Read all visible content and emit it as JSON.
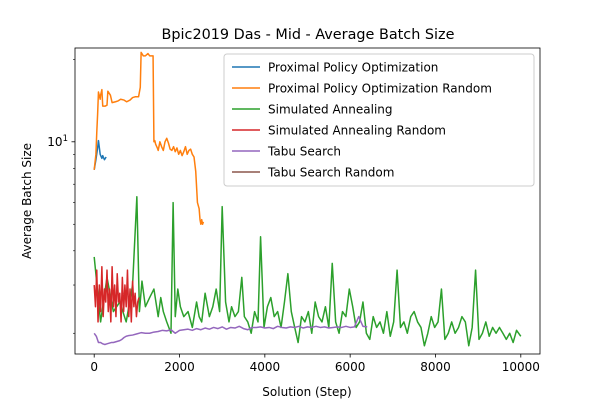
{
  "chart_data": {
    "type": "line",
    "title": "Bpic2019 Das - Mid - Average Batch Size",
    "xlabel": "Solution (Step)",
    "ylabel": "Average Batch Size",
    "xlim": [
      -450,
      10450
    ],
    "ylim": [
      1.68,
      22.0
    ],
    "yscale": "log",
    "grid": false,
    "legend_position": "top-right",
    "x_ticks": [
      0,
      2000,
      4000,
      6000,
      8000,
      10000
    ],
    "x_tick_labels": [
      "0",
      "2000",
      "4000",
      "6000",
      "8000",
      "10000"
    ],
    "y_major_ticks": [
      10
    ],
    "y_major_tick_labels": [
      "10^1"
    ],
    "y_minor_ticks": [
      2,
      3,
      4,
      5,
      6,
      7,
      8,
      9,
      20
    ],
    "series": [
      {
        "name": "Proximal Policy Optimization",
        "color": "#1f77b4",
        "x": [
          0,
          40,
          80,
          100,
          140,
          180,
          200,
          240,
          280
        ],
        "y": [
          7.9,
          8.6,
          9.5,
          10.1,
          9.0,
          8.7,
          8.9,
          8.6,
          8.8
        ]
      },
      {
        "name": "Proximal Policy Optimization Random",
        "color": "#ff7f0e",
        "x": [
          0,
          40,
          60,
          80,
          100,
          140,
          150,
          180,
          200,
          220,
          260,
          300,
          320,
          380,
          420,
          500,
          560,
          620,
          700,
          760,
          800,
          840,
          900,
          960,
          1000,
          1040,
          1080,
          1100,
          1150,
          1200,
          1260,
          1300,
          1340,
          1380,
          1400,
          1420,
          1440,
          1480,
          1500,
          1540,
          1580,
          1620,
          1660,
          1700,
          1740,
          1780,
          1820,
          1860,
          1900,
          1940,
          1980,
          2020,
          2060,
          2100,
          2140,
          2180,
          2220,
          2260,
          2300,
          2340,
          2380,
          2420,
          2460,
          2480,
          2500,
          2520,
          2540,
          2560
        ],
        "y": [
          7.9,
          9.0,
          10.8,
          12.6,
          15.2,
          14.3,
          14.8,
          15.5,
          13.5,
          13.5,
          13.5,
          13.6,
          15.3,
          14.8,
          13.9,
          14.0,
          14.1,
          14.3,
          14.2,
          14.0,
          14.1,
          14.2,
          14.5,
          14.6,
          14.6,
          14.6,
          15.8,
          21.2,
          20.6,
          20.6,
          21.0,
          20.6,
          20.6,
          20.6,
          10.0,
          10.1,
          9.8,
          9.5,
          9.3,
          10.0,
          9.6,
          9.3,
          10.0,
          10.3,
          9.9,
          9.4,
          9.3,
          9.6,
          9.2,
          9.5,
          9.0,
          9.3,
          8.9,
          9.2,
          9.6,
          9.0,
          9.3,
          9.4,
          9.0,
          8.8,
          7.8,
          6.0,
          5.7,
          5.2,
          5.0,
          5.2,
          5.0,
          5.1
        ]
      },
      {
        "name": "Simulated Annealing",
        "color": "#2ca02c",
        "x": [
          0,
          150,
          300,
          450,
          600,
          750,
          900,
          1000,
          1060,
          1120,
          1200,
          1300,
          1400,
          1500,
          1560,
          1620,
          1700,
          1800,
          1850,
          1900,
          1960,
          2020,
          2100,
          2200,
          2300,
          2400,
          2460,
          2520,
          2600,
          2700,
          2780,
          2860,
          2940,
          3000,
          3080,
          3160,
          3220,
          3300,
          3380,
          3460,
          3520,
          3600,
          3680,
          3760,
          3840,
          3900,
          3980,
          4060,
          4140,
          4220,
          4300,
          4380,
          4460,
          4540,
          4620,
          4700,
          4780,
          4860,
          4940,
          5020,
          5100,
          5180,
          5260,
          5340,
          5420,
          5500,
          5580,
          5660,
          5740,
          5820,
          5900,
          5980,
          6060,
          6140,
          6220,
          6300,
          6380,
          6460,
          6540,
          6620,
          6700,
          6780,
          6860,
          6940,
          7020,
          7100,
          7180,
          7260,
          7340,
          7420,
          7500,
          7580,
          7660,
          7740,
          7820,
          7900,
          7980,
          8060,
          8140,
          8220,
          8300,
          8380,
          8460,
          8540,
          8620,
          8700,
          8780,
          8860,
          8940,
          9020,
          9100,
          9180,
          9260,
          9340,
          9420,
          9500,
          9580,
          9660,
          9740,
          9820,
          9900,
          10000
        ],
        "y": [
          3.8,
          2.2,
          3.2,
          2.4,
          2.6,
          2.2,
          3.0,
          6.3,
          2.4,
          3.1,
          2.5,
          2.7,
          2.9,
          2.3,
          2.7,
          2.4,
          2.2,
          2.0,
          6.0,
          2.3,
          2.9,
          2.5,
          2.3,
          2.4,
          2.1,
          2.6,
          2.3,
          2.2,
          2.8,
          2.3,
          2.5,
          2.9,
          2.4,
          5.8,
          2.6,
          2.2,
          2.5,
          2.3,
          2.4,
          3.2,
          2.3,
          2.2,
          2.0,
          2.4,
          2.2,
          4.5,
          2.1,
          2.5,
          2.7,
          2.3,
          2.4,
          2.1,
          2.6,
          3.3,
          2.4,
          2.1,
          1.85,
          2.3,
          2.2,
          2.4,
          2.0,
          2.6,
          2.3,
          2.2,
          2.5,
          2.1,
          3.6,
          2.2,
          2.0,
          2.4,
          2.3,
          2.9,
          2.5,
          2.1,
          2.2,
          2.6,
          2.0,
          1.9,
          2.3,
          2.1,
          2.2,
          2.0,
          2.4,
          1.95,
          2.2,
          3.4,
          2.1,
          2.2,
          2.0,
          2.3,
          2.4,
          2.2,
          2.1,
          1.8,
          2.0,
          2.3,
          2.1,
          2.2,
          2.9,
          1.9,
          2.0,
          2.2,
          2.0,
          2.1,
          2.3,
          2.2,
          1.8,
          2.1,
          3.4,
          1.9,
          2.0,
          2.2,
          1.95,
          2.1,
          2.0,
          2.1,
          2.0,
          1.9,
          2.0,
          1.85,
          2.05,
          1.95
        ]
      },
      {
        "name": "Simulated Annealing Random",
        "color": "#d62728",
        "x": [
          0,
          30,
          60,
          90,
          120,
          150,
          180,
          210,
          240,
          270,
          300,
          330,
          360,
          390,
          420,
          450,
          480,
          510,
          540,
          570,
          600,
          630,
          660,
          690,
          720,
          750,
          780,
          810,
          840,
          870,
          900,
          930,
          960,
          990,
          1020,
          1050
        ],
        "y": [
          3.0,
          2.5,
          3.4,
          2.2,
          3.0,
          2.4,
          3.5,
          2.3,
          2.9,
          2.6,
          3.4,
          2.4,
          2.9,
          2.2,
          3.5,
          2.5,
          3.0,
          2.3,
          3.3,
          2.6,
          2.8,
          2.2,
          3.2,
          2.4,
          3.0,
          2.5,
          3.4,
          2.3,
          2.9,
          2.2,
          3.1,
          2.5,
          2.8,
          2.3,
          2.6,
          2.7
        ]
      },
      {
        "name": "Tabu Search",
        "color": "#9467bd",
        "x": [
          0,
          50,
          100,
          150,
          200,
          250,
          300,
          350,
          400,
          450,
          500,
          550,
          600,
          650,
          700,
          750,
          800,
          900,
          1000,
          1100,
          1200,
          1300,
          1400,
          1500,
          1600,
          1700,
          1800,
          1900,
          2000,
          2100,
          2200,
          2300,
          2400,
          2500,
          2600,
          2700,
          2800,
          2900,
          3000,
          3100,
          3200,
          3300,
          3400,
          3500,
          3600,
          3700,
          3800,
          3900,
          4000,
          4100,
          4200,
          4300,
          4400,
          4500,
          4600,
          4700,
          4800,
          4900,
          5000,
          5100,
          5200,
          5300,
          5400,
          5500,
          5600,
          5700,
          5800,
          5900,
          6000,
          6100,
          6200,
          6300,
          6400
        ],
        "y": [
          2.0,
          1.95,
          1.85,
          1.85,
          1.83,
          1.82,
          1.83,
          1.84,
          1.85,
          1.85,
          1.86,
          1.87,
          1.88,
          1.9,
          1.93,
          1.95,
          1.96,
          1.97,
          1.99,
          2.01,
          2.0,
          2.0,
          2.02,
          2.03,
          2.05,
          2.04,
          2.06,
          2.0,
          2.05,
          2.06,
          2.07,
          2.05,
          2.08,
          2.06,
          2.09,
          2.07,
          2.1,
          2.08,
          2.11,
          2.07,
          2.1,
          2.09,
          2.12,
          2.08,
          2.06,
          2.1,
          2.1,
          2.11,
          2.09,
          2.1,
          2.08,
          2.12,
          2.1,
          2.09,
          2.11,
          2.1,
          2.12,
          2.09,
          2.11,
          2.1,
          2.12,
          2.1,
          2.11,
          2.09,
          2.1,
          2.11,
          2.1,
          2.12,
          2.1,
          2.11,
          2.3,
          2.12,
          2.11
        ]
      },
      {
        "name": "Tabu Search Random",
        "color": "#8c564b",
        "x": [],
        "y": []
      }
    ]
  }
}
